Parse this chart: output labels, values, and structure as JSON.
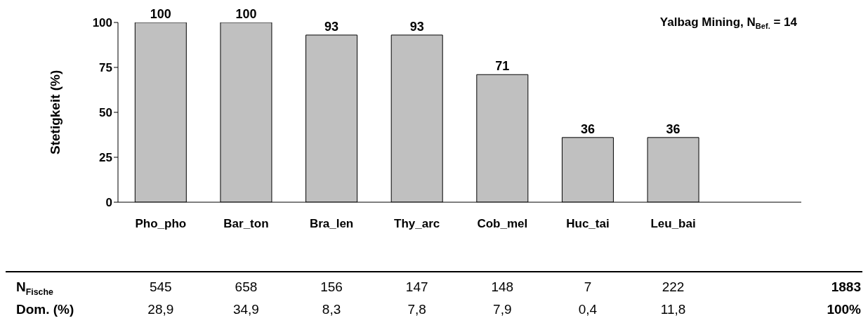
{
  "chart_data": [
    {
      "type": "bar",
      "title": "Yalbag Mining, N$_{Bef.}$ = 14",
      "ylabel": "Stetigkeit (%)",
      "categories": [
        "Pho_pho",
        "Bar_ton",
        "Bra_len",
        "Thy_arc",
        "Cob_mel",
        "Huc_tai",
        "Leu_bai",
        null
      ],
      "values": [
        100,
        100,
        93,
        93,
        71,
        36,
        36,
        null
      ],
      "color": "#c0c0c0",
      "ylim": [
        0,
        100
      ],
      "yticks": [
        0,
        25,
        50,
        75,
        100
      ],
      "grid": false,
      "data_labels": true
    },
    {
      "type": "other",
      "annotations": [
        "N$_{Fische}$",
        "545",
        "658",
        "156",
        "147",
        "148",
        "7",
        "222",
        "1883",
        "Dom. (%)",
        "28,9",
        "34,9",
        "8,3",
        "7,8",
        "7,9",
        "0,4",
        "11,8",
        "100%"
      ]
    }
  ]
}
